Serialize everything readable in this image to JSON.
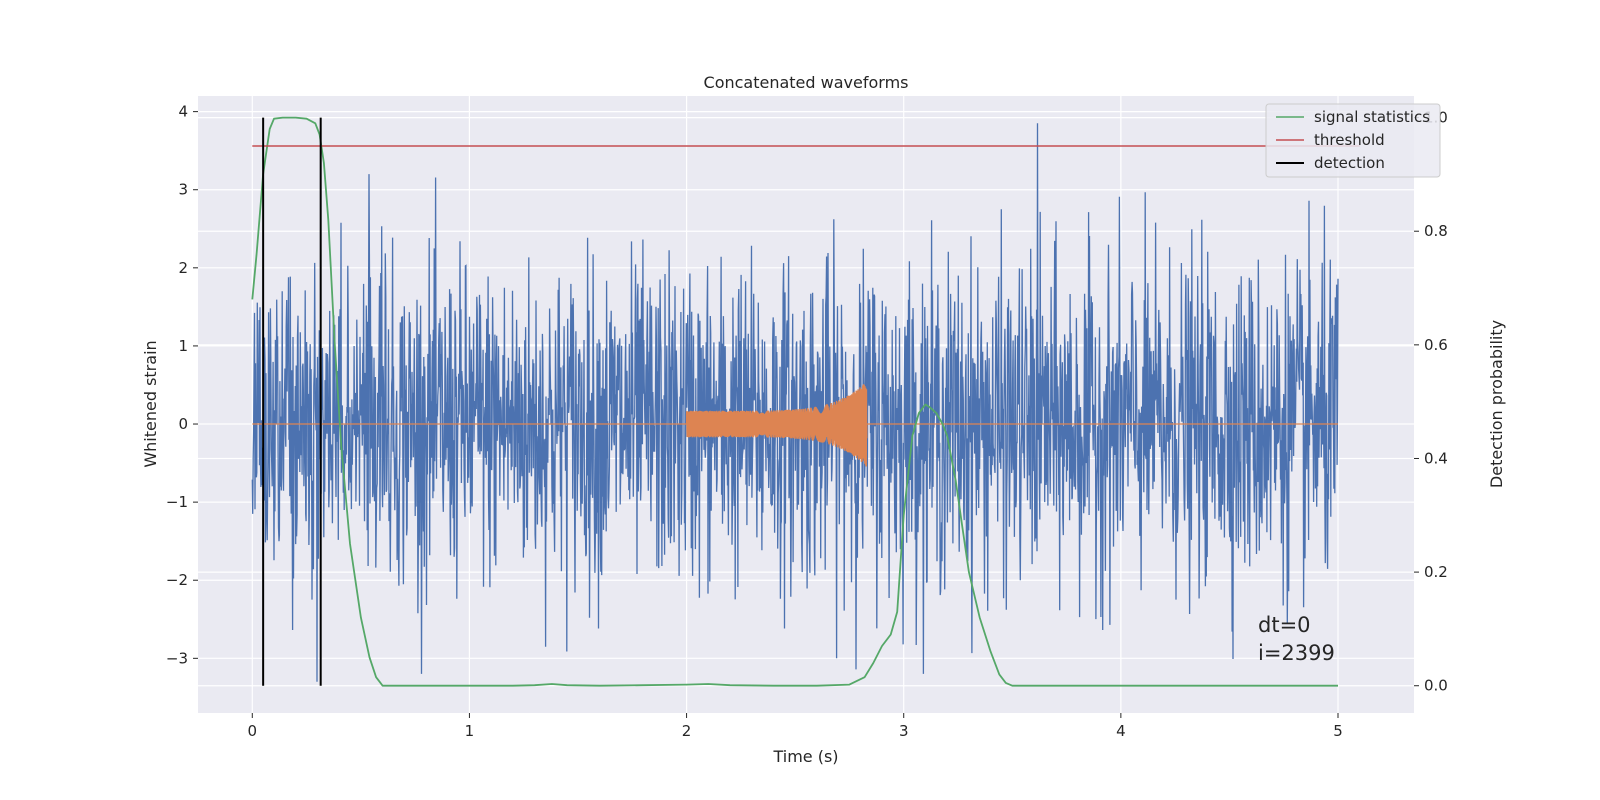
{
  "chart_data": {
    "type": "line",
    "title": "Concatenated waveforms",
    "xlabel": "Time (s)",
    "ylabel": "Whitened strain",
    "ylabel_right": "Detection probability",
    "xlim": [
      -0.25,
      5.35
    ],
    "ylim": [
      -3.7,
      4.2
    ],
    "ylim_right": [
      -0.048,
      1.038
    ],
    "x_ticks": [
      0,
      1,
      2,
      3,
      4,
      5
    ],
    "x_tick_labels": [
      "0",
      "1",
      "2",
      "3",
      "4",
      "5"
    ],
    "y_ticks": [
      -3,
      -2,
      -1,
      0,
      1,
      2,
      3,
      4
    ],
    "y_tick_labels": [
      "−3",
      "−2",
      "−1",
      "0",
      "1",
      "2",
      "3",
      "4"
    ],
    "y_right_ticks": [
      0.0,
      0.2,
      0.4,
      0.6,
      0.8,
      1.0
    ],
    "y_right_tick_labels": [
      "0.0",
      "0.2",
      "0.4",
      "0.6",
      "0.8",
      "1.0"
    ],
    "grid": true,
    "legend": {
      "placement": "top-right",
      "entries": [
        {
          "label": "signal statistics",
          "color": "#55a868"
        },
        {
          "label": "threshold",
          "color": "#c44e52"
        },
        {
          "label": "detection",
          "color": "#000000"
        }
      ]
    },
    "series": [
      {
        "label": "whitened strain",
        "color": "#4c72b0",
        "x_range": [
          0,
          5
        ],
        "description_amplitude": [
          -3.3,
          3.85
        ]
      },
      {
        "label": "injected waveform",
        "color": "#dd8452",
        "x_start": 2.0,
        "x_end": 2.83,
        "amplitude_start": 0.17,
        "amplitude_end": 0.55
      },
      {
        "name": "signal statistics",
        "color": "#55a868",
        "axis": "right",
        "x": [
          0.0,
          0.02,
          0.05,
          0.08,
          0.1,
          0.14,
          0.2,
          0.25,
          0.29,
          0.31,
          0.33,
          0.35,
          0.38,
          0.41,
          0.45,
          0.5,
          0.54,
          0.57,
          0.6,
          0.8,
          1.0,
          1.2,
          1.3,
          1.38,
          1.45,
          1.6,
          1.8,
          2.0,
          2.1,
          2.2,
          2.4,
          2.6,
          2.75,
          2.82,
          2.86,
          2.9,
          2.94,
          2.97,
          3.0,
          3.04,
          3.07,
          3.1,
          3.12,
          3.15,
          3.18,
          3.2,
          3.24,
          3.27,
          3.3,
          3.35,
          3.4,
          3.44,
          3.47,
          3.5,
          3.6,
          4.0,
          4.5,
          5.0
        ],
        "y": [
          0.68,
          0.76,
          0.9,
          0.98,
          0.998,
          1.0,
          1.0,
          0.998,
          0.99,
          0.97,
          0.92,
          0.82,
          0.6,
          0.42,
          0.25,
          0.12,
          0.05,
          0.015,
          0.0,
          0.0,
          0.0,
          0.0,
          0.001,
          0.003,
          0.001,
          0.0,
          0.001,
          0.002,
          0.003,
          0.001,
          0.0,
          0.0,
          0.002,
          0.015,
          0.04,
          0.07,
          0.09,
          0.13,
          0.3,
          0.44,
          0.48,
          0.495,
          0.49,
          0.48,
          0.46,
          0.44,
          0.36,
          0.28,
          0.2,
          0.12,
          0.06,
          0.02,
          0.005,
          0.0,
          0.0,
          0.0,
          0.0,
          0.0
        ]
      },
      {
        "name": "threshold",
        "color": "#c44e52",
        "axis": "right",
        "x": [
          0,
          5.1
        ],
        "y": [
          0.95,
          0.95
        ]
      },
      {
        "name": "detection",
        "color": "#000000",
        "axis": "right",
        "type": "vlines",
        "x": [
          0.05,
          0.315
        ],
        "ymin": 0.0,
        "ymax": 1.0
      }
    ],
    "annotations": [
      "dt=0",
      "i=2399"
    ]
  }
}
